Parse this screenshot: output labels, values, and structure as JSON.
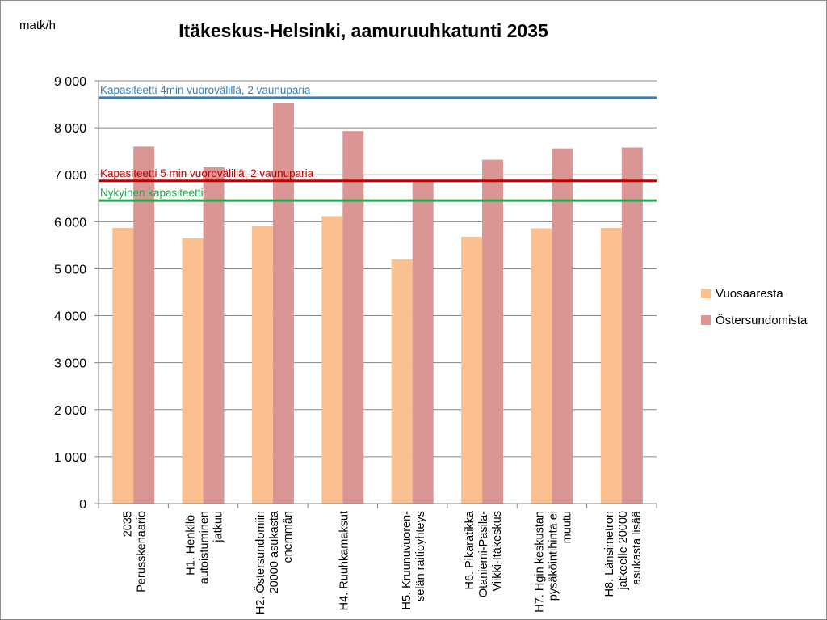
{
  "chart_data": {
    "type": "bar",
    "title": "Itäkeskus-Helsinki, aamuruuhkatunti 2035",
    "ylabel": "matk/h",
    "xlabel": "",
    "ylim": [
      0,
      9000
    ],
    "ytick_values": [
      0,
      1000,
      2000,
      3000,
      4000,
      5000,
      6000,
      7000,
      8000,
      9000
    ],
    "ytick_labels": [
      "0",
      "1 000",
      "2 000",
      "3 000",
      "4 000",
      "5 000",
      "6 000",
      "7 000",
      "8 000",
      "9 000"
    ],
    "grid": true,
    "legend_position": "right",
    "categories": [
      [
        "2035",
        "Perusskenaario"
      ],
      [
        "H1. Henkilö-",
        "autoistuminen",
        "jatkuu"
      ],
      [
        "H2. Östersundomiin",
        "20000 asukasta",
        "enemmän"
      ],
      [
        "H4. Ruuhkamaksut"
      ],
      [
        "H5. Kruunuvuoren-",
        "selän raitioyhteys"
      ],
      [
        "H6. Pikaratikka",
        "Otaniemi-Pasila-",
        "Viikki-Itäkeskus"
      ],
      [
        "H7. Hgin keskustan",
        "pysäköintihinta ei",
        "muutu"
      ],
      [
        "H8. Länsimetron",
        "jatkeelle 20000",
        "asukasta lisää"
      ]
    ],
    "series": [
      {
        "name": "Vuosaaresta",
        "color": "#fac090",
        "values": [
          5870,
          5650,
          5910,
          6120,
          5200,
          5680,
          5860,
          5870
        ]
      },
      {
        "name": "Östersundomista",
        "color": "#d99694",
        "values": [
          7600,
          7160,
          8530,
          7930,
          6860,
          7320,
          7560,
          7580
        ]
      }
    ],
    "reference_lines": [
      {
        "label": "Kapasiteetti 4min vuorovälillä, 2 vaunuparia",
        "value": 8640,
        "color": "#2f7fbf",
        "label_color": "#2f7fbf"
      },
      {
        "label": "Kapasiteetti 5 min vuorovälillä, 2 vaunuparia",
        "value": 6870,
        "color": "#c00000",
        "label_color": "#c00000"
      },
      {
        "label": "Nykyinen kapasiteetti",
        "value": 6450,
        "color": "#22a84a",
        "label_color": "#22a84a"
      }
    ]
  }
}
